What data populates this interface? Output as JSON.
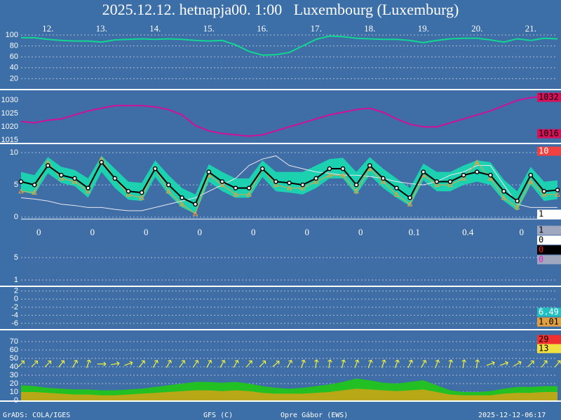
{
  "footer": [
    "GrADS: COLA/IGES",
    "GFS (C)",
    "Opre Gábor (EWS)",
    "2025-12-12-06:17"
  ],
  "chart_data": [
    {
      "type": "line",
      "title": "2025.12.12. hetnapja00. 1:00   Luxembourg (Luxemburg)",
      "grid": true,
      "xlim": [
        0,
        240
      ],
      "ylim": [
        0,
        100
      ],
      "yticks": [
        20,
        40,
        60,
        80,
        100
      ],
      "xticks": [
        {
          "value": 12,
          "label": "12."
        },
        {
          "value": 36,
          "label": "13."
        },
        {
          "value": 60,
          "label": "14."
        },
        {
          "value": 84,
          "label": "15."
        },
        {
          "value": 108,
          "label": "16."
        },
        {
          "value": 132,
          "label": "17."
        },
        {
          "value": 156,
          "label": "18."
        },
        {
          "value": 180,
          "label": "19."
        },
        {
          "value": 204,
          "label": "20."
        },
        {
          "value": 228,
          "label": "21."
        }
      ],
      "x": [
        0,
        6,
        12,
        18,
        24,
        30,
        36,
        42,
        48,
        54,
        60,
        66,
        72,
        78,
        84,
        90,
        96,
        102,
        108,
        114,
        120,
        126,
        132,
        138,
        144,
        150,
        156,
        162,
        168,
        174,
        180,
        186,
        192,
        198,
        204,
        210,
        216,
        222,
        228,
        234,
        240
      ],
      "series": [
        {
          "color": "#10d890",
          "line_width": 2,
          "values": [
            95,
            95,
            92,
            90,
            89,
            89,
            87,
            91,
            92,
            93,
            92,
            93,
            92,
            90,
            89,
            90,
            82,
            70,
            63,
            64,
            68,
            80,
            92,
            98,
            97,
            94,
            93,
            92,
            92,
            90,
            86,
            90,
            93,
            94,
            94,
            91,
            87,
            93,
            90,
            94,
            93
          ]
        }
      ]
    },
    {
      "type": "line",
      "grid": false,
      "xlim": [
        0,
        240
      ],
      "ylim": [
        1014,
        1033.5
      ],
      "yticks": [
        1015,
        1020,
        1025,
        1030
      ],
      "x": [
        0,
        6,
        12,
        18,
        24,
        30,
        36,
        42,
        48,
        54,
        60,
        66,
        72,
        78,
        84,
        90,
        96,
        102,
        108,
        114,
        120,
        126,
        132,
        138,
        144,
        150,
        156,
        162,
        168,
        174,
        180,
        186,
        192,
        198,
        204,
        210,
        216,
        222,
        228,
        234,
        240
      ],
      "series": [
        {
          "color": "#d0109a",
          "line_width": 2,
          "values": [
            1022,
            1021.5,
            1022.5,
            1023,
            1024.5,
            1026,
            1027,
            1028,
            1028,
            1028,
            1027.5,
            1026.5,
            1024.5,
            1020.5,
            1018.5,
            1017.5,
            1017,
            1016.5,
            1017,
            1018.5,
            1020,
            1021.5,
            1023,
            1024.5,
            1025.5,
            1026.5,
            1027,
            1025.5,
            1023,
            1021,
            1020,
            1020,
            1021.5,
            1023,
            1024.5,
            1026,
            1028,
            1030,
            1031,
            1031.5,
            1030.5
          ]
        }
      ],
      "right_labels": [
        {
          "text": "1032",
          "background": "#d8105a",
          "color": "#000000"
        },
        {
          "text": "1016",
          "background": "#d8105a",
          "color": "#000000"
        }
      ]
    },
    {
      "type": "line",
      "grid": true,
      "xlim": [
        0,
        240
      ],
      "ylim": [
        -0.2,
        11.3
      ],
      "yticks": [
        0,
        5,
        10
      ],
      "x": [
        0,
        6,
        12,
        18,
        24,
        30,
        36,
        42,
        48,
        54,
        60,
        66,
        72,
        78,
        84,
        90,
        96,
        102,
        108,
        114,
        120,
        126,
        132,
        138,
        144,
        150,
        156,
        162,
        168,
        174,
        180,
        186,
        192,
        198,
        204,
        210,
        216,
        222,
        228,
        234,
        240
      ],
      "band": {
        "color": "#18dcb0",
        "high": [
          7,
          6.5,
          9.3,
          7.8,
          7.3,
          6,
          9.5,
          7.5,
          5.5,
          5.3,
          8.8,
          6.5,
          4.5,
          3.5,
          8.2,
          7,
          6,
          6,
          8.8,
          7,
          7,
          7,
          8,
          9,
          9.2,
          7,
          9.3,
          7.5,
          6,
          4.5,
          8.3,
          7,
          7,
          8,
          8.8,
          8.5,
          5.8,
          4,
          7.8,
          5.5,
          5.7
        ],
        "low": [
          4,
          3.5,
          6.8,
          5.3,
          4.8,
          3,
          7,
          4.5,
          2.7,
          2.5,
          6.2,
          3.5,
          1.5,
          0.5,
          5.5,
          4,
          3,
          3,
          6.2,
          4,
          3.8,
          3.5,
          4.5,
          6,
          6,
          3.5,
          6.5,
          4.5,
          3,
          1.7,
          5.7,
          4,
          4,
          5,
          5.5,
          5,
          2.5,
          1,
          5,
          2.5,
          2.8
        ]
      },
      "series": [
        {
          "color": "#e8e8f0",
          "line_width": 1,
          "values": [
            3,
            2.8,
            2.5,
            2,
            1.8,
            1.5,
            1.5,
            1.2,
            1,
            1,
            1.5,
            2,
            2.5,
            3,
            4,
            5,
            6,
            8,
            9,
            9.5,
            8,
            7.5,
            7,
            6.8,
            6.5,
            6.5,
            6.3,
            6,
            5.5,
            5.2,
            5,
            5.5,
            6.5,
            7,
            8,
            8,
            5,
            2,
            1.5,
            1.5,
            1.5
          ]
        },
        {
          "color": "#e8a040",
          "line_width": 1,
          "marker": "triangle",
          "values": [
            4,
            3.8,
            8.5,
            6,
            5.5,
            4,
            9,
            6,
            3.5,
            3,
            7.5,
            4,
            2,
            0.5,
            6.5,
            5,
            3.5,
            3.5,
            7.5,
            5,
            4.5,
            4.5,
            5.5,
            6.5,
            6.5,
            4,
            7.5,
            5.5,
            3.5,
            2,
            6.5,
            5,
            5,
            6,
            8.5,
            6,
            3,
            1.5,
            5.5,
            3.5,
            3.5
          ]
        },
        {
          "color": "#000000",
          "line_width": 2,
          "marker": "circle",
          "values": [
            5.5,
            5,
            8,
            6.5,
            6,
            4.5,
            8.5,
            6,
            4,
            3.8,
            7.5,
            5,
            3,
            2,
            7,
            5.5,
            4.5,
            4.5,
            7.5,
            5.5,
            5.3,
            5,
            6,
            7.5,
            7.5,
            5,
            8,
            6,
            4.5,
            3,
            7,
            5.5,
            5.5,
            6.5,
            7,
            6.5,
            4,
            2.5,
            6.5,
            4,
            4.2
          ]
        }
      ],
      "right_labels": [
        {
          "text": "10",
          "background": "#f04040",
          "color": "#ffffff"
        },
        {
          "text": "1",
          "background": "#ffffff",
          "color": "#000000"
        }
      ]
    },
    {
      "type": "bar",
      "grid": true,
      "xlim": [
        0,
        240
      ],
      "ylim": [
        0,
        11.75
      ],
      "yticks": [
        1,
        5
      ],
      "x": [
        12,
        36,
        60,
        84,
        108,
        132,
        156,
        180,
        204,
        228
      ],
      "daily_totals": [
        "0",
        "0",
        "0",
        "0",
        "0",
        "0",
        "0",
        "0.1",
        "0.4",
        "0"
      ],
      "right_labels": [
        {
          "text": "1",
          "background": "#a0a8c0",
          "color": "#000000"
        },
        {
          "text": "0",
          "background": "#ffffff",
          "color": "#000000"
        },
        {
          "text": "0",
          "background": "#000000",
          "color": "#ff2020"
        },
        {
          "text": "0",
          "background": "#a0a8c0",
          "color": "#e020c0"
        }
      ]
    },
    {
      "type": "line",
      "grid": true,
      "xlim": [
        0,
        240
      ],
      "ylim": [
        -7.4,
        3
      ],
      "yticks": [
        -6,
        -4,
        -2,
        0,
        2
      ],
      "right_labels": [
        {
          "text": "6.49",
          "background": "#20c0c0",
          "color": "#ffffff"
        },
        {
          "text": "1.01",
          "background": "#e0a040",
          "color": "#000000"
        }
      ]
    },
    {
      "type": "area",
      "grid": true,
      "xlim": [
        0,
        240
      ],
      "ylim": [
        0,
        82.5
      ],
      "yticks": [
        0,
        10,
        20,
        30,
        40,
        50,
        60,
        70
      ],
      "x": [
        0,
        6,
        12,
        18,
        24,
        30,
        36,
        42,
        48,
        54,
        60,
        66,
        72,
        78,
        84,
        90,
        96,
        102,
        108,
        114,
        120,
        126,
        132,
        138,
        144,
        150,
        156,
        162,
        168,
        174,
        180,
        186,
        192,
        198,
        204,
        210,
        216,
        222,
        228,
        234,
        240
      ],
      "series": [
        {
          "color": "#22c022",
          "values": [
            18,
            17,
            15,
            14,
            13,
            13,
            12,
            12,
            13,
            14,
            16,
            18,
            20,
            22,
            22,
            21,
            22,
            20,
            17,
            15,
            14,
            15,
            17,
            19,
            22,
            26,
            24,
            21,
            20,
            22,
            24,
            18,
            12,
            10,
            10,
            11,
            14,
            16,
            16,
            17,
            17
          ]
        },
        {
          "color": "#b8a818",
          "values": [
            10,
            10,
            9,
            8,
            7,
            7,
            6,
            6,
            7,
            8,
            9,
            10,
            11,
            12,
            12,
            11,
            12,
            11,
            9,
            8,
            8,
            8,
            9,
            10,
            12,
            14,
            13,
            12,
            11,
            12,
            13,
            10,
            7,
            6,
            6,
            6,
            8,
            9,
            9,
            10,
            10
          ]
        }
      ],
      "arrow_color": "#f0f040",
      "wind_direction": [
        45,
        45,
        45,
        40,
        30,
        20,
        90,
        80,
        70,
        40,
        30,
        30,
        35,
        35,
        30,
        30,
        30,
        40,
        45,
        50,
        30,
        20,
        10,
        10,
        15,
        20,
        20,
        20,
        20,
        25,
        30,
        20,
        15,
        10,
        10,
        70,
        70,
        60,
        45,
        40,
        40
      ],
      "right_labels": [
        {
          "text": "29",
          "background": "#f03030",
          "color": "#000000"
        },
        {
          "text": "13",
          "background": "#f0e040",
          "color": "#000000"
        }
      ]
    }
  ]
}
